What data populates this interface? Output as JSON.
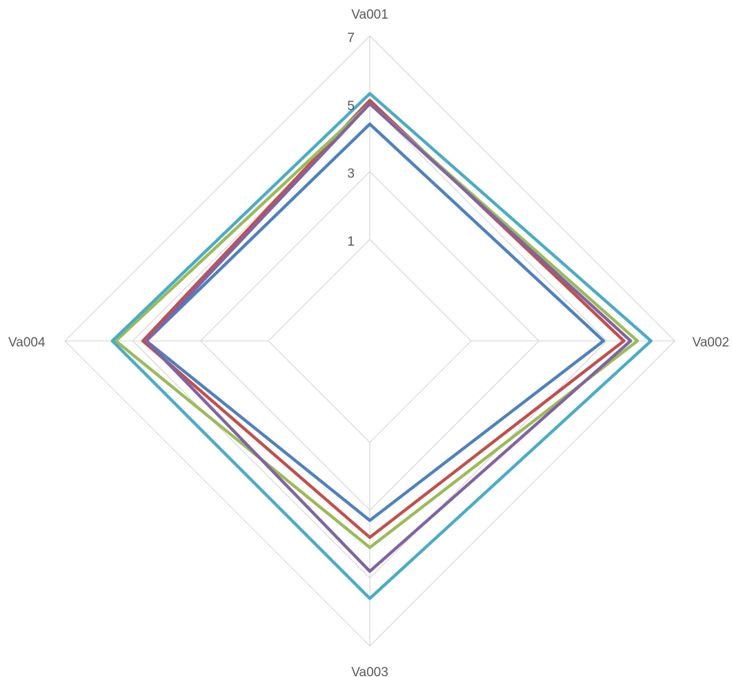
{
  "chart_data": {
    "type": "radar",
    "axes": [
      "Va001",
      "Va002",
      "Va003",
      "Va004"
    ],
    "range": [
      1,
      7
    ],
    "ticks": [
      1,
      3,
      5,
      7
    ],
    "tick_labels": [
      "1",
      "3",
      "5",
      "7"
    ],
    "grid": true,
    "series": [
      {
        "color": "#4F81BD",
        "values": [
          4.4,
          4.9,
          3.3,
          4.6
        ]
      },
      {
        "color": "#C0504D",
        "values": [
          5.1,
          5.5,
          3.8,
          4.7
        ]
      },
      {
        "color": "#9BBB59",
        "values": [
          5.0,
          5.9,
          4.1,
          5.5
        ]
      },
      {
        "color": "#8064A2",
        "values": [
          5.0,
          5.7,
          4.8,
          4.6
        ]
      },
      {
        "color": "#4BACC6",
        "values": [
          5.3,
          6.3,
          5.6,
          5.6
        ]
      }
    ]
  }
}
